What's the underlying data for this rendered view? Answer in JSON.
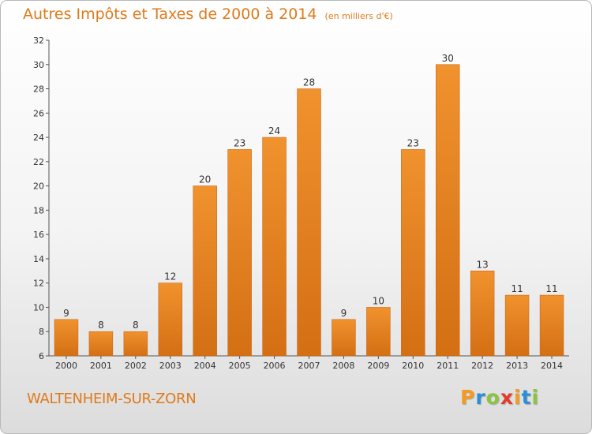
{
  "chart_data": {
    "type": "bar",
    "title": "Autres Impôts et Taxes de 2000 à 2014",
    "unit": "(en milliers d'€)",
    "categories": [
      "2000",
      "2001",
      "2002",
      "2003",
      "2004",
      "2005",
      "2006",
      "2007",
      "2008",
      "2009",
      "2010",
      "2011",
      "2012",
      "2013",
      "2014"
    ],
    "values": [
      9,
      8,
      8,
      12,
      20,
      23,
      24,
      28,
      9,
      10,
      23,
      30,
      13,
      11,
      11
    ],
    "ylim": [
      6,
      32
    ],
    "yticks": [
      6,
      8,
      10,
      12,
      14,
      16,
      18,
      20,
      22,
      24,
      26,
      28,
      30,
      32
    ],
    "grid": false,
    "bar_color": "#f0922e",
    "bar_color_dark": "#d46f14"
  },
  "place": "WALTENHEIM-SUR-ZORN",
  "logo": {
    "letters": [
      "P",
      "r",
      "o",
      "x",
      "i",
      "t",
      "i"
    ],
    "colors": [
      "#f39a1f",
      "#2a8fd8",
      "#8bc43f",
      "#e23a2e",
      "#f39a1f",
      "#2a8fd8",
      "#8bc43f"
    ]
  }
}
